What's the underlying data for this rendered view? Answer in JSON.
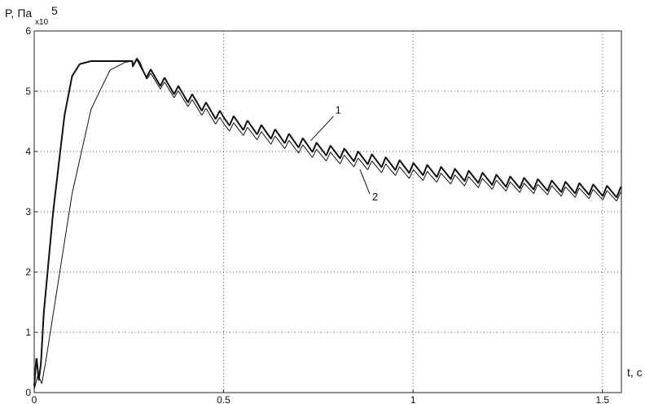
{
  "chart_data": {
    "type": "line",
    "title": "",
    "ylabel": "P, Па",
    "ylabel_multiplier": "x10",
    "ylabel_exponent": "5",
    "xlabel": "t, c",
    "xlim": [
      0,
      1.55
    ],
    "ylim": [
      0,
      6
    ],
    "grid": true,
    "grid_style": "dotted",
    "x_ticks": [
      0,
      0.5,
      1,
      1.5
    ],
    "x_tick_labels": [
      "0",
      "0.5",
      "1",
      "1.5"
    ],
    "y_ticks": [
      0,
      1,
      2,
      3,
      4,
      5,
      6
    ],
    "y_tick_labels": [
      "0",
      "1",
      "2",
      "3",
      "4",
      "5",
      "6"
    ],
    "annotations": [
      {
        "text": "1",
        "series": "1",
        "at": [
          0.73,
          4.18
        ]
      },
      {
        "text": "2",
        "series": "2",
        "at": [
          0.86,
          3.7
        ]
      }
    ],
    "series": [
      {
        "name": "1",
        "stroke_width": 2,
        "x": [
          0,
          0.006,
          0.012,
          0.018,
          0.025,
          0.05,
          0.08,
          0.1,
          0.12,
          0.15,
          0.2,
          0.26,
          0.3,
          0.5,
          0.75,
          1.0,
          1.25,
          1.55
        ],
        "y": [
          0.1,
          0.6,
          0.2,
          0.5,
          1.3,
          3.0,
          4.6,
          5.25,
          5.45,
          5.5,
          5.5,
          5.5,
          5.3,
          4.55,
          4.05,
          3.72,
          3.5,
          3.32
        ],
        "ripple": {
          "start": 0.26,
          "period": 0.0365,
          "amplitude": 0.18
        }
      },
      {
        "name": "2",
        "stroke_width": 1,
        "x": [
          0,
          0.01,
          0.02,
          0.03,
          0.05,
          0.1,
          0.15,
          0.2,
          0.24,
          0.26,
          0.28,
          0.3,
          0.5,
          0.75,
          1.0,
          1.25,
          1.55
        ],
        "y": [
          0.05,
          0.3,
          0.15,
          0.5,
          1.3,
          3.3,
          4.7,
          5.35,
          5.48,
          5.5,
          5.45,
          5.25,
          4.45,
          3.95,
          3.62,
          3.42,
          3.25
        ],
        "ripple": {
          "start": 0.26,
          "period": 0.0365,
          "amplitude": 0.16
        }
      }
    ]
  }
}
